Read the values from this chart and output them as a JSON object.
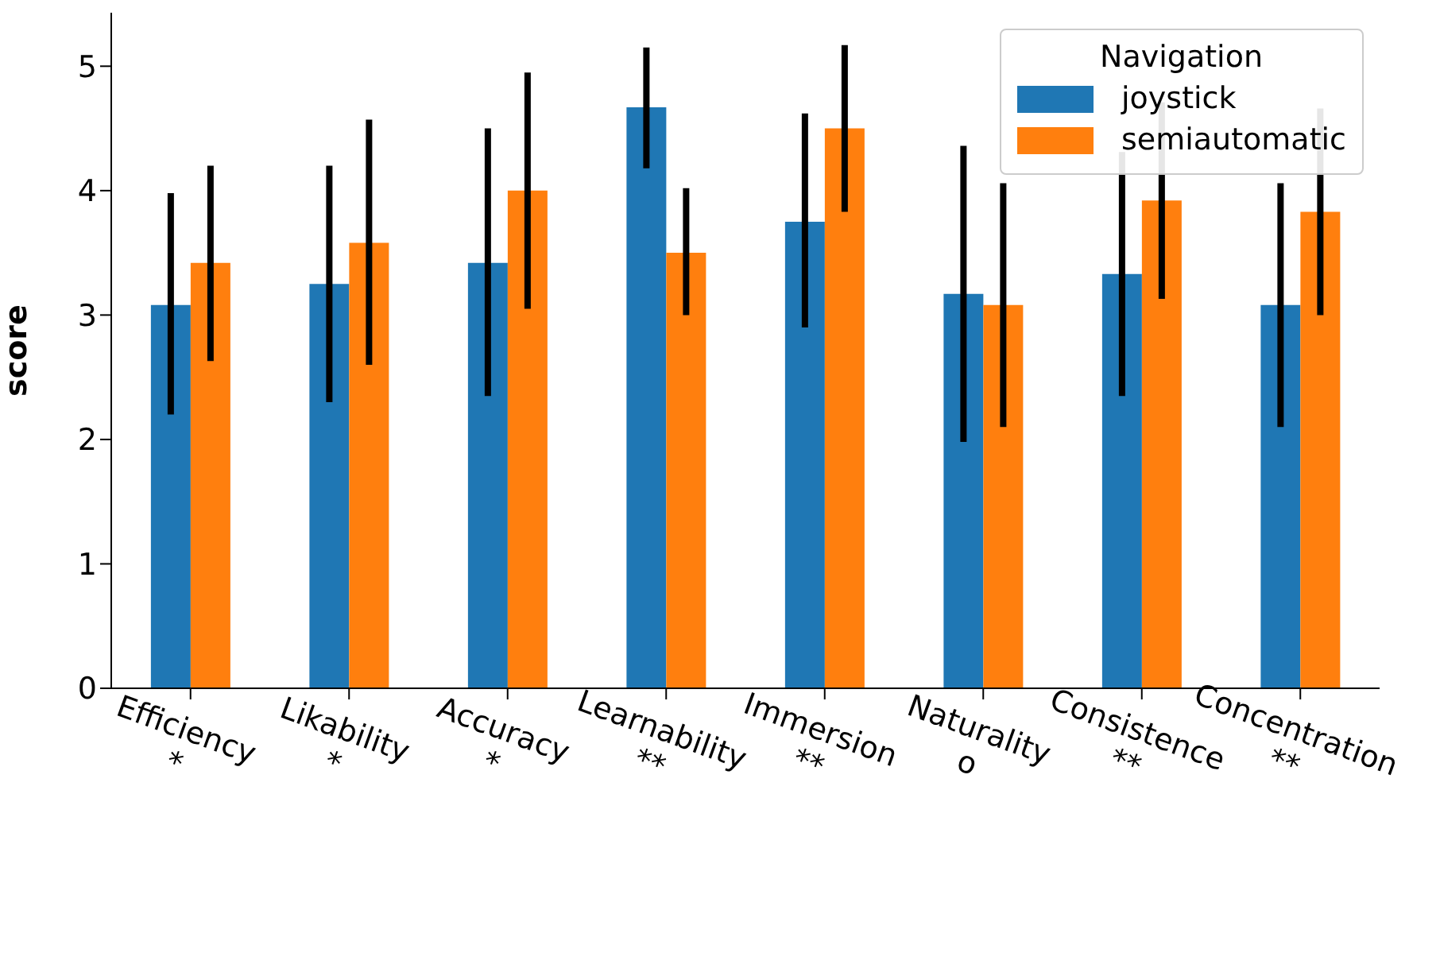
{
  "chart_data": {
    "type": "bar",
    "ylabel": "score",
    "legend_title": "Navigation",
    "legend": "top right",
    "categories": [
      "Efficiency\n*",
      "Likability\n*",
      "Accuracy\n*",
      "Learnability\n**",
      "Immersion\n**",
      "Naturality\no",
      "Consistence\n**",
      "Concentration\n**"
    ],
    "series": [
      {
        "name": "joystick",
        "color": "#1f77b4",
        "values": [
          3.08,
          3.25,
          3.42,
          4.67,
          3.75,
          3.17,
          3.33,
          3.08
        ],
        "errors": [
          [
            2.2,
            3.98
          ],
          [
            2.3,
            4.2
          ],
          [
            2.35,
            4.5
          ],
          [
            4.18,
            5.15
          ],
          [
            2.9,
            4.62
          ],
          [
            1.98,
            4.36
          ],
          [
            2.35,
            4.31
          ],
          [
            2.1,
            4.06
          ]
        ]
      },
      {
        "name": "semiautomatic",
        "color": "#ff7f0e",
        "values": [
          3.42,
          3.58,
          4.0,
          3.5,
          4.5,
          3.08,
          3.92,
          3.83
        ],
        "errors": [
          [
            2.63,
            4.2
          ],
          [
            2.6,
            4.57
          ],
          [
            3.05,
            4.95
          ],
          [
            3.0,
            4.02
          ],
          [
            3.83,
            5.17
          ],
          [
            2.1,
            4.06
          ],
          [
            3.13,
            4.71
          ],
          [
            3.0,
            4.66
          ]
        ]
      }
    ],
    "ylim": [
      0,
      5.43
    ],
    "yticks": [
      0,
      1,
      2,
      3,
      4,
      5
    ],
    "grid": false
  }
}
